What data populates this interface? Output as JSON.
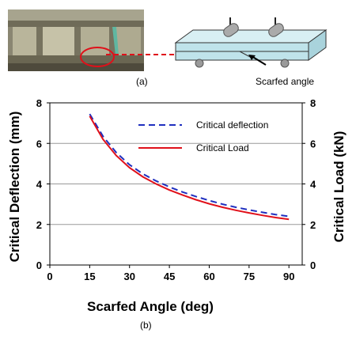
{
  "panel_a": {
    "label": "(a)",
    "callout": "Scarfed angle"
  },
  "panel_b": {
    "label": "(b)"
  },
  "colors": {
    "deflection": "#1f2fbf",
    "load": "#e0101a",
    "marker": "#e0101a",
    "specimen": "#bfe3ea"
  },
  "chart_data": {
    "type": "line",
    "title": "",
    "xlabel": "Scarfed Angle (deg)",
    "ylabel": "Critical Deflection (mm)",
    "y2label": "Critical Load (kN)",
    "xlim": [
      0,
      95
    ],
    "ylim": [
      0,
      8
    ],
    "y2lim": [
      0,
      8
    ],
    "xticks": [
      0,
      15,
      30,
      45,
      60,
      75,
      90
    ],
    "yticks": [
      0,
      2,
      4,
      6,
      8
    ],
    "y2ticks": [
      0,
      2,
      4,
      6,
      8
    ],
    "grid": "horizontal",
    "legend_position": "top-right",
    "series": [
      {
        "name": "Critical deflection",
        "axis": "left",
        "style": "dashed",
        "x": [
          15,
          20,
          25,
          30,
          35,
          40,
          45,
          50,
          55,
          60,
          65,
          70,
          75,
          80,
          85,
          90
        ],
        "y": [
          7.45,
          6.35,
          5.55,
          4.95,
          4.5,
          4.15,
          3.85,
          3.6,
          3.38,
          3.18,
          3.0,
          2.85,
          2.72,
          2.6,
          2.49,
          2.4
        ]
      },
      {
        "name": "Critical Load",
        "axis": "right",
        "style": "solid",
        "x": [
          15,
          20,
          25,
          30,
          35,
          40,
          45,
          50,
          55,
          60,
          65,
          70,
          75,
          80,
          85,
          90
        ],
        "y": [
          7.35,
          6.2,
          5.4,
          4.8,
          4.35,
          4.0,
          3.7,
          3.45,
          3.22,
          3.02,
          2.85,
          2.7,
          2.57,
          2.45,
          2.34,
          2.25
        ]
      }
    ]
  }
}
